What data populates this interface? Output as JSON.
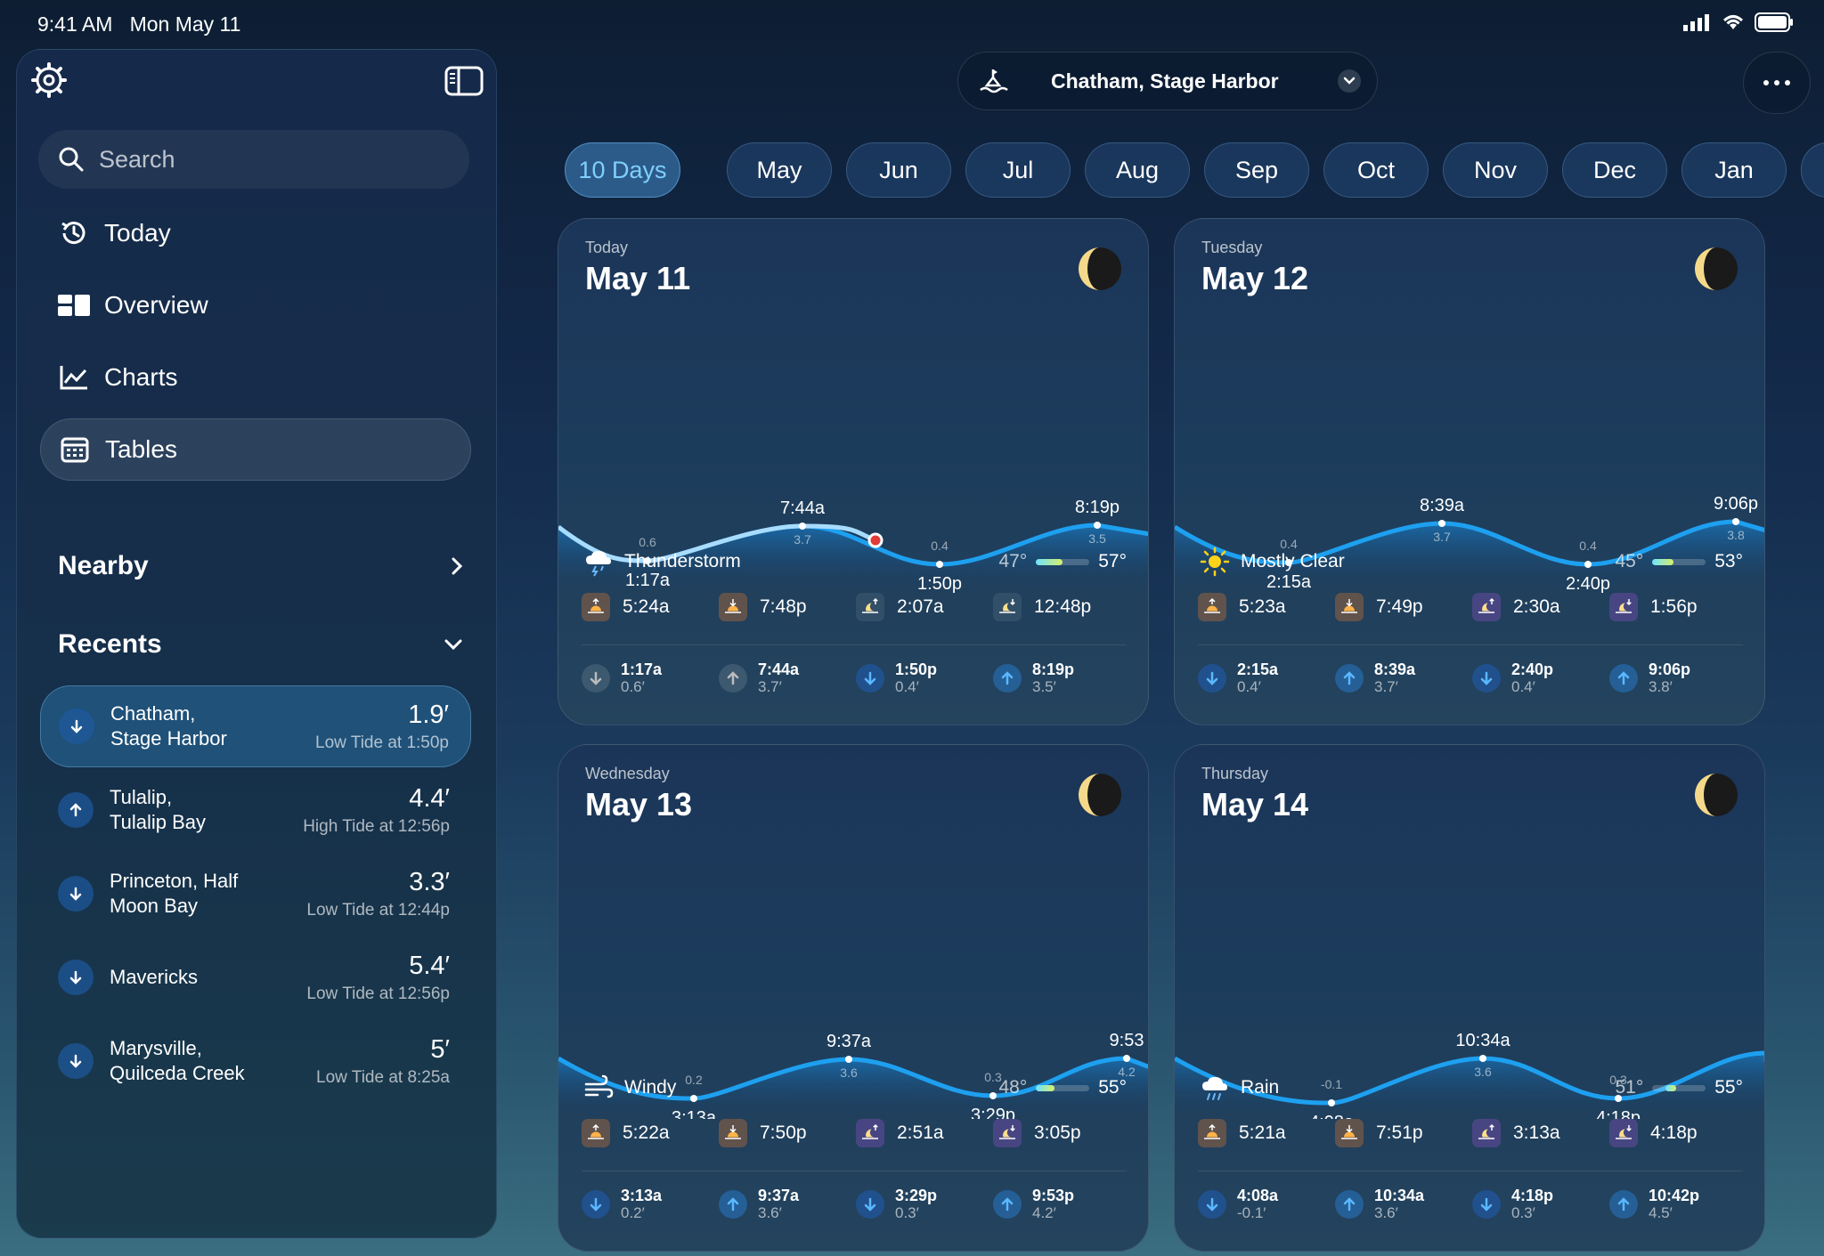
{
  "status": {
    "time": "9:41 AM",
    "date": "Mon May 11"
  },
  "sidebar": {
    "search_placeholder": "Search",
    "nav": [
      {
        "label": "Today"
      },
      {
        "label": "Overview"
      },
      {
        "label": "Charts"
      },
      {
        "label": "Tables"
      }
    ],
    "nearby_label": "Nearby",
    "recents_label": "Recents",
    "recents": [
      {
        "name1": "Chatham,",
        "name2": "Stage Harbor",
        "value": "1.9′",
        "sub": "Low Tide at 1:50p",
        "dir": "down"
      },
      {
        "name1": "Tulalip,",
        "name2": "Tulalip Bay",
        "value": "4.4′",
        "sub": "High Tide at 12:56p",
        "dir": "up"
      },
      {
        "name1": "Princeton, Half",
        "name2": "Moon Bay",
        "value": "3.3′",
        "sub": "Low Tide at 12:44p",
        "dir": "down"
      },
      {
        "name1": "Mavericks",
        "name2": "",
        "value": "5.4′",
        "sub": "Low Tide at 12:56p",
        "dir": "down"
      },
      {
        "name1": "Marysville,",
        "name2": "Quilceda Creek",
        "value": "5′",
        "sub": "Low Tide at 8:25a",
        "dir": "down"
      }
    ]
  },
  "header": {
    "location": "Chatham, Stage Harbor"
  },
  "tabs": [
    "10 Days",
    "May",
    "Jun",
    "Jul",
    "Aug",
    "Sep",
    "Oct",
    "Nov",
    "Dec",
    "Jan"
  ],
  "days": [
    {
      "dow": "Today",
      "date": "May 11",
      "condition": "Thunderstorm",
      "cond_icon": "thunderstorm-icon",
      "lo": "47°",
      "hi": "57°",
      "bar": [
        0.0,
        0.5
      ],
      "sun": [
        "5:24a",
        "7:48p",
        "2:07a",
        "12:48p"
      ],
      "tides": [
        {
          "t": "1:17a",
          "h": "0.6′",
          "dir": "down"
        },
        {
          "t": "7:44a",
          "h": "3.7′",
          "dir": "up"
        },
        {
          "t": "1:50p",
          "h": "0.4′",
          "dir": "down"
        },
        {
          "t": "8:19p",
          "h": "3.5′",
          "dir": "up"
        }
      ],
      "chart": [
        {
          "label": "1:17a",
          "value": "0.6"
        },
        {
          "label": "7:44a",
          "value": "3.7"
        },
        {
          "label": "1:50p",
          "value": "0.4"
        },
        {
          "label": "8:19p",
          "value": "3.5"
        }
      ]
    },
    {
      "dow": "Tuesday",
      "date": "May 12",
      "condition": "Mostly Clear",
      "cond_icon": "sun-icon",
      "lo": "45°",
      "hi": "53°",
      "bar": [
        0.0,
        0.4
      ],
      "sun": [
        "5:23a",
        "7:49p",
        "2:30a",
        "1:56p"
      ],
      "tides": [
        {
          "t": "2:15a",
          "h": "0.4′",
          "dir": "down"
        },
        {
          "t": "8:39a",
          "h": "3.7′",
          "dir": "up"
        },
        {
          "t": "2:40p",
          "h": "0.4′",
          "dir": "down"
        },
        {
          "t": "9:06p",
          "h": "3.8′",
          "dir": "up"
        }
      ],
      "chart": [
        {
          "label": "2:15a",
          "value": "0.4"
        },
        {
          "label": "8:39a",
          "value": "3.7"
        },
        {
          "label": "2:40p",
          "value": "0.4"
        },
        {
          "label": "9:06p",
          "value": "3.8"
        }
      ]
    },
    {
      "dow": "Wednesday",
      "date": "May 13",
      "condition": "Windy",
      "cond_icon": "wind-icon",
      "lo": "48°",
      "hi": "55°",
      "bar": [
        0.0,
        0.35
      ],
      "sun": [
        "5:22a",
        "7:50p",
        "2:51a",
        "3:05p"
      ],
      "tides": [
        {
          "t": "3:13a",
          "h": "0.2′",
          "dir": "down"
        },
        {
          "t": "9:37a",
          "h": "3.6′",
          "dir": "up"
        },
        {
          "t": "3:29p",
          "h": "0.3′",
          "dir": "down"
        },
        {
          "t": "9:53p",
          "h": "4.2′",
          "dir": "up"
        }
      ],
      "chart": [
        {
          "label": "3:13a",
          "value": "0.2"
        },
        {
          "label": "9:37a",
          "value": "3.6"
        },
        {
          "label": "3:29p",
          "value": "0.3"
        },
        {
          "label": "9:53",
          "value": "4.2"
        }
      ]
    },
    {
      "dow": "Thursday",
      "date": "May 14",
      "condition": "Rain",
      "cond_icon": "rain-icon",
      "lo": "51°",
      "hi": "55°",
      "bar": [
        0.25,
        0.45
      ],
      "sun": [
        "5:21a",
        "7:51p",
        "3:13a",
        "4:18p"
      ],
      "tides": [
        {
          "t": "4:08a",
          "h": "-0.1′",
          "dir": "down"
        },
        {
          "t": "10:34a",
          "h": "3.6′",
          "dir": "up"
        },
        {
          "t": "4:18p",
          "h": "0.3′",
          "dir": "down"
        },
        {
          "t": "10:42p",
          "h": "4.5′",
          "dir": "up"
        }
      ],
      "chart": [
        {
          "label": "4:08a",
          "value": "-0.1"
        },
        {
          "label": "10:34a",
          "value": "3.6"
        },
        {
          "label": "4:18p",
          "value": "0.3"
        },
        {
          "label": "",
          "value": ""
        }
      ]
    }
  ],
  "colors": {
    "accent": "#1e9be8",
    "tab_active_text": "#7fd0ff",
    "sun_bg": "#b06a3a",
    "moon_bg": "#6a4aa0",
    "tide_down": "#1e7fe0"
  }
}
